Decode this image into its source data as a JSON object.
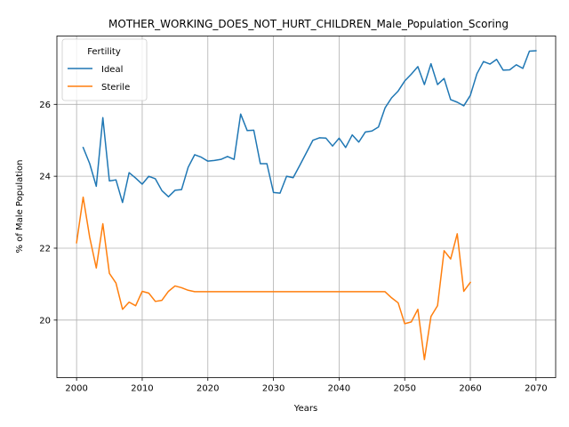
{
  "chart_data": {
    "type": "line",
    "title": "MOTHER_WORKING_DOES_NOT_HURT_CHILDREN_Male_Population_Scoring",
    "xlabel": "Years",
    "ylabel": "% of Male Population",
    "xlim": [
      1997,
      2073
    ],
    "ylim": [
      18.4,
      27.9
    ],
    "xticks": [
      2000,
      2010,
      2020,
      2030,
      2040,
      2050,
      2060,
      2070
    ],
    "yticks": [
      20,
      22,
      24,
      26
    ],
    "grid": true,
    "legend": {
      "title": "Fertility",
      "placement": "top-left"
    },
    "series": [
      {
        "name": "Ideal",
        "color": "#1f77b4",
        "x": [
          2001,
          2002,
          2003,
          2004,
          2005,
          2006,
          2007,
          2008,
          2009,
          2010,
          2011,
          2012,
          2013,
          2014,
          2015,
          2016,
          2017,
          2018,
          2019,
          2020,
          2021,
          2022,
          2023,
          2024,
          2025,
          2026,
          2027,
          2028,
          2029,
          2030,
          2031,
          2032,
          2033,
          2034,
          2035,
          2036,
          2037,
          2038,
          2039,
          2040,
          2041,
          2042,
          2043,
          2044,
          2045,
          2046,
          2047,
          2048,
          2049,
          2050,
          2051,
          2052,
          2053,
          2054,
          2055,
          2056,
          2057,
          2058,
          2059,
          2060,
          2061,
          2062,
          2063,
          2064,
          2065,
          2066,
          2067,
          2068,
          2069,
          2070
        ],
        "y": [
          24.8,
          24.35,
          23.72,
          25.63,
          23.87,
          23.9,
          23.27,
          24.1,
          23.95,
          23.78,
          24.0,
          23.93,
          23.6,
          23.43,
          23.61,
          23.63,
          24.25,
          24.6,
          24.53,
          24.42,
          24.44,
          24.47,
          24.55,
          24.47,
          25.73,
          25.27,
          25.28,
          24.35,
          24.35,
          23.55,
          23.53,
          24.0,
          23.96,
          24.3,
          24.65,
          25.0,
          25.07,
          25.06,
          24.84,
          25.06,
          24.8,
          25.15,
          24.95,
          25.23,
          25.26,
          25.37,
          25.9,
          26.18,
          26.37,
          26.65,
          26.84,
          27.05,
          26.55,
          27.13,
          26.55,
          26.72,
          26.13,
          26.06,
          25.96,
          26.25,
          26.85,
          27.19,
          27.12,
          27.25,
          26.95,
          26.96,
          27.1,
          27.0,
          27.48,
          27.49
        ]
      },
      {
        "name": "Sterile",
        "color": "#ff7f0e",
        "x": [
          2000,
          2001,
          2002,
          2003,
          2004,
          2005,
          2006,
          2007,
          2008,
          2009,
          2010,
          2011,
          2012,
          2013,
          2014,
          2015,
          2016,
          2017,
          2018,
          2019,
          2020,
          2021,
          2022,
          2023,
          2024,
          2025,
          2026,
          2027,
          2028,
          2029,
          2030,
          2031,
          2032,
          2033,
          2034,
          2035,
          2036,
          2037,
          2038,
          2039,
          2040,
          2041,
          2042,
          2043,
          2044,
          2045,
          2046,
          2047,
          2048,
          2049,
          2050,
          2051,
          2052,
          2053,
          2054,
          2055,
          2056,
          2057,
          2058,
          2059,
          2060
        ],
        "y": [
          22.15,
          23.42,
          22.3,
          21.45,
          22.68,
          21.3,
          21.03,
          20.3,
          20.5,
          20.4,
          20.8,
          20.75,
          20.52,
          20.55,
          20.8,
          20.95,
          20.9,
          20.83,
          20.79,
          20.79,
          20.79,
          20.79,
          20.79,
          20.79,
          20.79,
          20.79,
          20.79,
          20.79,
          20.79,
          20.79,
          20.79,
          20.79,
          20.79,
          20.79,
          20.79,
          20.79,
          20.79,
          20.79,
          20.79,
          20.79,
          20.79,
          20.79,
          20.79,
          20.79,
          20.79,
          20.79,
          20.79,
          20.79,
          20.62,
          20.48,
          19.9,
          19.95,
          20.3,
          18.9,
          20.1,
          20.4,
          21.93,
          21.7,
          22.4,
          20.8,
          21.05
        ]
      }
    ]
  }
}
